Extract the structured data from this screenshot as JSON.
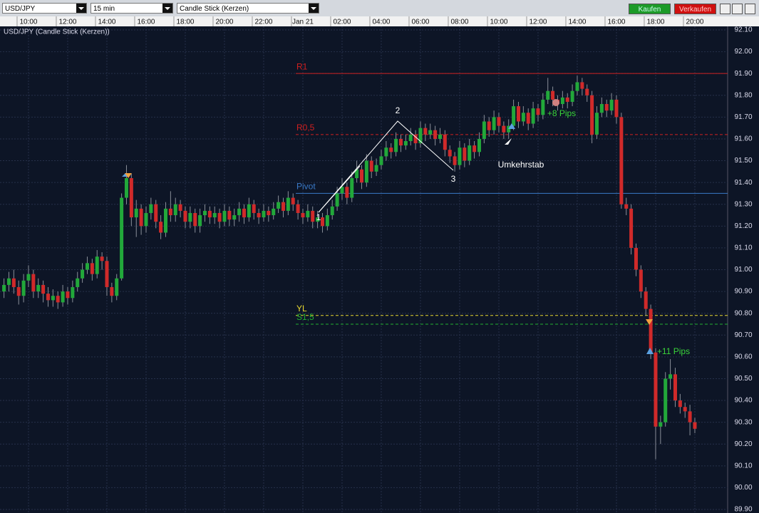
{
  "toolbar": {
    "symbol": "USD/JPY",
    "interval": "15 min",
    "chart_type": "Candle Stick (Kerzen)",
    "buy": "Kaufen",
    "sell": "Verkaufen"
  },
  "chart_data": {
    "type": "candlestick",
    "title": "USD/JPY (Candle Stick (Kerzen))",
    "categories": [
      null,
      null,
      null,
      null,
      null,
      "10:00",
      null,
      null,
      null,
      null,
      null,
      null,
      null,
      "12:00",
      null,
      null,
      null,
      null,
      null,
      null,
      null,
      "14:00",
      null,
      null,
      null,
      null,
      null,
      null,
      null,
      "16:00",
      null,
      null,
      null,
      null,
      null,
      null,
      null,
      "18:00",
      null,
      null,
      null,
      null,
      null,
      null,
      null,
      "20:00",
      null,
      null,
      null,
      null,
      null,
      null,
      null,
      "22:00",
      null,
      null,
      null,
      null,
      null,
      null,
      null,
      "Jan 21",
      null,
      null,
      null,
      null,
      null,
      null,
      null,
      "02:00",
      null,
      null,
      null,
      null,
      null,
      null,
      null,
      "04:00",
      null,
      null,
      null,
      null,
      null,
      null,
      null,
      "06:00",
      null,
      null,
      null,
      null,
      null,
      null,
      null,
      "08:00",
      null,
      null,
      null,
      null,
      null,
      null,
      null,
      "10:00",
      null,
      null,
      null,
      null,
      null,
      null,
      null,
      "12:00",
      null,
      null,
      null,
      null,
      null,
      null,
      null,
      "14:00",
      null,
      null,
      null,
      null,
      null,
      null,
      null,
      "16:00",
      null,
      null,
      null,
      null,
      null,
      null,
      null,
      "18:00",
      null,
      null,
      null,
      null,
      null,
      null,
      null,
      "20:00"
    ],
    "open": [
      90.9,
      90.93,
      90.96,
      90.92,
      90.88,
      90.95,
      90.98,
      90.9,
      90.93,
      90.89,
      90.86,
      90.88,
      90.85,
      90.9,
      90.87,
      90.92,
      90.96,
      91.0,
      91.03,
      90.98,
      91.06,
      91.04,
      90.92,
      90.88,
      90.96,
      91.33,
      91.42,
      91.24,
      91.28,
      91.2,
      91.26,
      91.3,
      91.22,
      91.17,
      91.28,
      91.25,
      91.3,
      91.27,
      91.22,
      91.26,
      91.2,
      91.25,
      91.27,
      91.24,
      91.26,
      91.22,
      91.27,
      91.23,
      91.25,
      91.28,
      91.24,
      91.3,
      91.26,
      91.24,
      91.27,
      91.25,
      91.28,
      91.31,
      91.27,
      91.33,
      91.3,
      91.26,
      91.24,
      91.27,
      91.22,
      91.24,
      91.2,
      91.25,
      91.29,
      91.35,
      91.38,
      91.33,
      91.42,
      91.46,
      91.4,
      91.5,
      91.45,
      91.48,
      91.52,
      91.56,
      91.54,
      91.6,
      91.57,
      91.59,
      91.62,
      91.58,
      91.65,
      91.62,
      91.64,
      91.6,
      91.62,
      91.55,
      91.52,
      91.48,
      91.56,
      91.5,
      91.57,
      91.54,
      91.6,
      91.68,
      91.64,
      91.7,
      91.66,
      91.63,
      91.66,
      91.75,
      91.68,
      91.72,
      91.67,
      91.74,
      91.71,
      91.78,
      91.82,
      91.78,
      91.76,
      91.79,
      91.77,
      91.82,
      91.86,
      91.83,
      91.8,
      91.62,
      91.72,
      91.76,
      91.73,
      91.78,
      91.7,
      91.3,
      91.28,
      91.1,
      91.0,
      90.9,
      90.82,
      90.62,
      90.28,
      90.3,
      90.5,
      90.52,
      90.4,
      90.37,
      90.35,
      90.3
    ],
    "high": [
      90.96,
      90.99,
      91.0,
      90.95,
      90.98,
      91.02,
      91.0,
      90.96,
      90.95,
      90.92,
      90.91,
      90.9,
      90.93,
      90.92,
      90.95,
      90.99,
      91.03,
      91.06,
      91.05,
      91.09,
      91.08,
      91.06,
      90.94,
      90.98,
      91.35,
      91.48,
      91.44,
      91.32,
      91.3,
      91.29,
      91.33,
      91.32,
      91.25,
      91.31,
      91.36,
      91.33,
      91.32,
      91.29,
      91.29,
      91.28,
      91.28,
      91.3,
      91.29,
      91.29,
      91.28,
      91.3,
      91.29,
      91.28,
      91.31,
      91.3,
      91.33,
      91.32,
      91.28,
      91.3,
      91.29,
      91.31,
      91.34,
      91.33,
      91.36,
      91.35,
      91.32,
      91.28,
      91.3,
      91.29,
      91.27,
      91.26,
      91.28,
      91.32,
      91.38,
      91.42,
      91.4,
      91.45,
      91.5,
      91.48,
      91.53,
      91.52,
      91.51,
      91.55,
      91.59,
      91.58,
      91.63,
      91.62,
      91.62,
      91.65,
      91.64,
      91.68,
      91.67,
      91.67,
      91.66,
      91.65,
      91.64,
      91.57,
      91.54,
      91.59,
      91.58,
      91.6,
      91.59,
      91.63,
      91.71,
      91.7,
      91.73,
      91.72,
      91.68,
      91.69,
      91.78,
      91.77,
      91.75,
      91.74,
      91.77,
      91.76,
      91.81,
      91.88,
      91.84,
      91.8,
      91.82,
      91.81,
      91.85,
      91.89,
      91.88,
      91.85,
      91.82,
      91.75,
      91.79,
      91.78,
      91.81,
      91.8,
      91.72,
      91.33,
      91.3,
      91.12,
      91.02,
      90.92,
      90.84,
      90.64,
      90.33,
      90.53,
      90.59,
      90.55,
      90.43,
      90.39,
      90.38,
      90.32
    ],
    "low": [
      90.87,
      90.9,
      90.89,
      90.84,
      90.85,
      90.92,
      90.87,
      90.87,
      90.85,
      90.83,
      90.83,
      90.82,
      90.83,
      90.84,
      90.85,
      90.9,
      90.94,
      90.98,
      90.95,
      90.96,
      91.0,
      90.88,
      90.85,
      90.86,
      90.95,
      91.3,
      91.2,
      91.15,
      91.16,
      91.17,
      91.23,
      91.19,
      91.14,
      91.15,
      91.22,
      91.22,
      91.24,
      91.19,
      91.19,
      91.17,
      91.17,
      91.22,
      91.21,
      91.21,
      91.19,
      91.2,
      91.2,
      91.2,
      91.22,
      91.21,
      91.22,
      91.23,
      91.21,
      91.22,
      91.22,
      91.23,
      91.26,
      91.24,
      91.25,
      91.27,
      91.23,
      91.21,
      91.22,
      91.19,
      91.19,
      91.17,
      91.18,
      91.23,
      91.27,
      91.32,
      91.3,
      91.31,
      91.4,
      91.37,
      91.38,
      91.42,
      91.43,
      91.46,
      91.5,
      91.51,
      91.52,
      91.54,
      91.55,
      91.57,
      91.55,
      91.56,
      91.59,
      91.6,
      91.57,
      91.58,
      91.52,
      91.49,
      91.45,
      91.46,
      91.47,
      91.48,
      91.51,
      91.52,
      91.58,
      91.61,
      91.62,
      91.63,
      91.6,
      91.6,
      91.64,
      91.65,
      91.66,
      91.64,
      91.65,
      91.68,
      91.69,
      91.76,
      91.75,
      91.73,
      91.74,
      91.74,
      91.75,
      91.8,
      91.8,
      91.77,
      91.58,
      91.6,
      91.7,
      91.7,
      91.71,
      91.67,
      91.28,
      91.25,
      91.07,
      90.97,
      90.87,
      90.79,
      90.59,
      90.13,
      90.2,
      90.28,
      90.45,
      90.37,
      90.34,
      90.32,
      90.24,
      90.25
    ],
    "close": [
      90.93,
      90.96,
      90.92,
      90.88,
      90.95,
      90.98,
      90.9,
      90.93,
      90.89,
      90.86,
      90.88,
      90.85,
      90.9,
      90.87,
      90.92,
      90.96,
      91.0,
      91.03,
      90.98,
      91.06,
      91.04,
      90.92,
      90.88,
      90.96,
      91.33,
      91.42,
      91.24,
      91.28,
      91.2,
      91.26,
      91.3,
      91.22,
      91.17,
      91.28,
      91.25,
      91.3,
      91.27,
      91.22,
      91.26,
      91.2,
      91.25,
      91.27,
      91.24,
      91.26,
      91.22,
      91.27,
      91.23,
      91.25,
      91.28,
      91.24,
      91.3,
      91.26,
      91.24,
      91.27,
      91.25,
      91.28,
      91.31,
      91.27,
      91.33,
      91.3,
      91.26,
      91.24,
      91.27,
      91.22,
      91.24,
      91.2,
      91.25,
      91.29,
      91.35,
      91.38,
      91.33,
      91.42,
      91.46,
      91.4,
      91.5,
      91.45,
      91.48,
      91.52,
      91.56,
      91.54,
      91.6,
      91.57,
      91.59,
      91.62,
      91.58,
      91.65,
      91.62,
      91.64,
      91.6,
      91.62,
      91.55,
      91.52,
      91.48,
      91.56,
      91.5,
      91.57,
      91.54,
      91.6,
      91.68,
      91.64,
      91.7,
      91.66,
      91.63,
      91.66,
      91.75,
      91.68,
      91.72,
      91.67,
      91.74,
      91.71,
      91.78,
      91.82,
      91.78,
      91.76,
      91.79,
      91.77,
      91.82,
      91.86,
      91.83,
      91.8,
      91.62,
      91.72,
      91.76,
      91.73,
      91.78,
      91.7,
      91.3,
      91.28,
      91.1,
      91.0,
      90.9,
      90.82,
      90.62,
      90.28,
      90.3,
      90.5,
      90.52,
      90.4,
      90.37,
      90.35,
      90.3,
      90.27
    ],
    "up_color": "#22a83a",
    "down_color": "#d02a2a",
    "ylim": [
      89.9,
      92.1
    ],
    "yticks": [
      {
        "value": 89.9,
        "label": "89.90"
      },
      {
        "value": 90.0,
        "label": "90.00"
      },
      {
        "value": 90.1,
        "label": "90.10"
      },
      {
        "value": 90.2,
        "label": "90.20"
      },
      {
        "value": 90.3,
        "label": "90.30"
      },
      {
        "value": 90.4,
        "label": "90.40"
      },
      {
        "value": 90.5,
        "label": "90.50"
      },
      {
        "value": 90.6,
        "label": "90.60"
      },
      {
        "value": 90.7,
        "label": "90.70"
      },
      {
        "value": 90.8,
        "label": "90.80"
      },
      {
        "value": 90.9,
        "label": "90.90"
      },
      {
        "value": 91.0,
        "label": "91.00"
      },
      {
        "value": 91.1,
        "label": "91.10"
      },
      {
        "value": 91.2,
        "label": "91.20"
      },
      {
        "value": 91.3,
        "label": "91.30"
      },
      {
        "value": 91.4,
        "label": "91.40"
      },
      {
        "value": 91.5,
        "label": "91.50"
      },
      {
        "value": 91.6,
        "label": "91.60"
      },
      {
        "value": 91.7,
        "label": "91.70"
      },
      {
        "value": 91.8,
        "label": "91.80"
      },
      {
        "value": 91.9,
        "label": "91.90"
      },
      {
        "value": 92.0,
        "label": "92.00"
      },
      {
        "value": 92.1,
        "label": "92.10"
      }
    ],
    "grid": true,
    "levels": [
      {
        "label": "R1",
        "value": 91.9,
        "color": "#d02020",
        "dashed": false
      },
      {
        "label": "R0,5",
        "value": 91.62,
        "color": "#d02020",
        "dashed": true
      },
      {
        "label": "Pivot",
        "value": 91.35,
        "color": "#3a7ac8",
        "dashed": false
      },
      {
        "label": "YL",
        "value": 90.79,
        "color": "#e8d830",
        "dashed": true
      },
      {
        "label": "S1,5",
        "value": 90.75,
        "color": "#22b030",
        "dashed": true
      }
    ],
    "annotations": [
      "1",
      "2",
      "3",
      "Umkehrstab",
      "+8 Pips",
      "+11 Pips"
    ]
  }
}
